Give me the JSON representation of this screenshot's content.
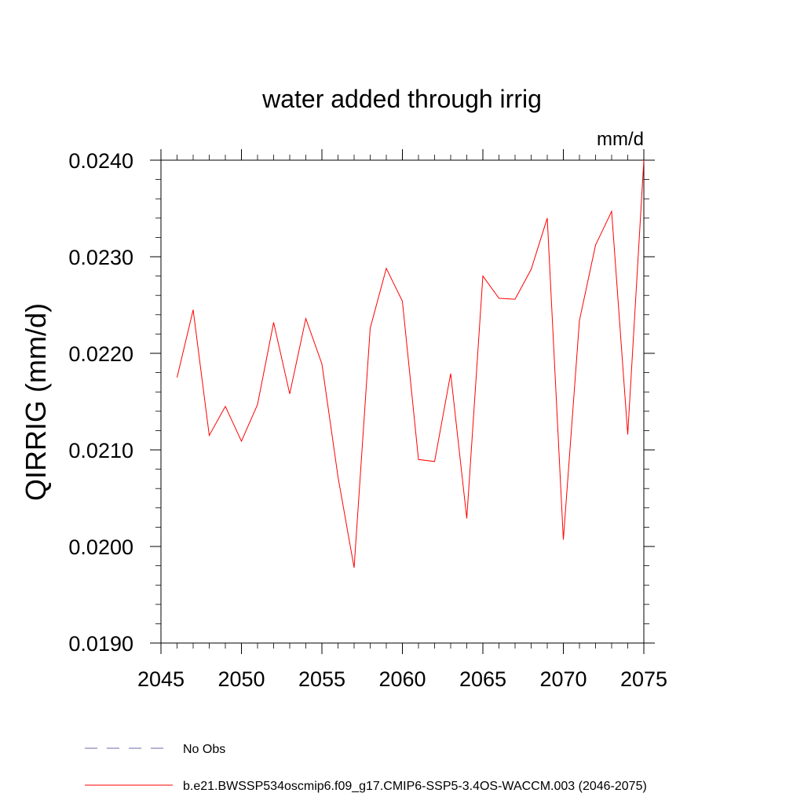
{
  "chart_data": {
    "type": "line",
    "title": "water added through irrig",
    "units_label": "mm/d",
    "ylabel": "QIRRIG  (mm/d)",
    "xlabel": "",
    "xlim": [
      2045,
      2075
    ],
    "ylim": [
      0.019,
      0.024
    ],
    "xticks": [
      2045,
      2050,
      2055,
      2060,
      2065,
      2070,
      2075
    ],
    "yticks": [
      "0.0190",
      "0.0200",
      "0.0210",
      "0.0220",
      "0.0230",
      "0.0240"
    ],
    "grid": false,
    "legend_position": "bottom",
    "series": [
      {
        "name": "b.e21.BWSSP534oscmip6.f09_g17.CMIP6-SSP5-3.4OS-WACCM.003 (2046-2075)",
        "color": "#ff0000",
        "style": "solid",
        "x": [
          2046,
          2047,
          2048,
          2049,
          2050,
          2051,
          2052,
          2053,
          2054,
          2055,
          2056,
          2057,
          2058,
          2059,
          2060,
          2061,
          2062,
          2063,
          2064,
          2065,
          2066,
          2067,
          2068,
          2069,
          2070,
          2071,
          2072,
          2073,
          2074,
          2075
        ],
        "y": [
          0.02175,
          0.02245,
          0.02115,
          0.02145,
          0.02109,
          0.02147,
          0.02232,
          0.02158,
          0.02236,
          0.02189,
          0.02072,
          0.01978,
          0.02226,
          0.02288,
          0.02254,
          0.0209,
          0.02088,
          0.02179,
          0.02029,
          0.0228,
          0.02257,
          0.02256,
          0.02287,
          0.0234,
          0.02007,
          0.02234,
          0.02312,
          0.02347,
          0.02116,
          0.024
        ]
      }
    ],
    "legend": [
      {
        "label": "No Obs",
        "color": "#6a6aa8",
        "style": "dashed"
      },
      {
        "label": "b.e21.BWSSP534oscmip6.f09_g17.CMIP6-SSP5-3.4OS-WACCM.003 (2046-2075)",
        "color": "#ff0000",
        "style": "solid"
      }
    ]
  }
}
